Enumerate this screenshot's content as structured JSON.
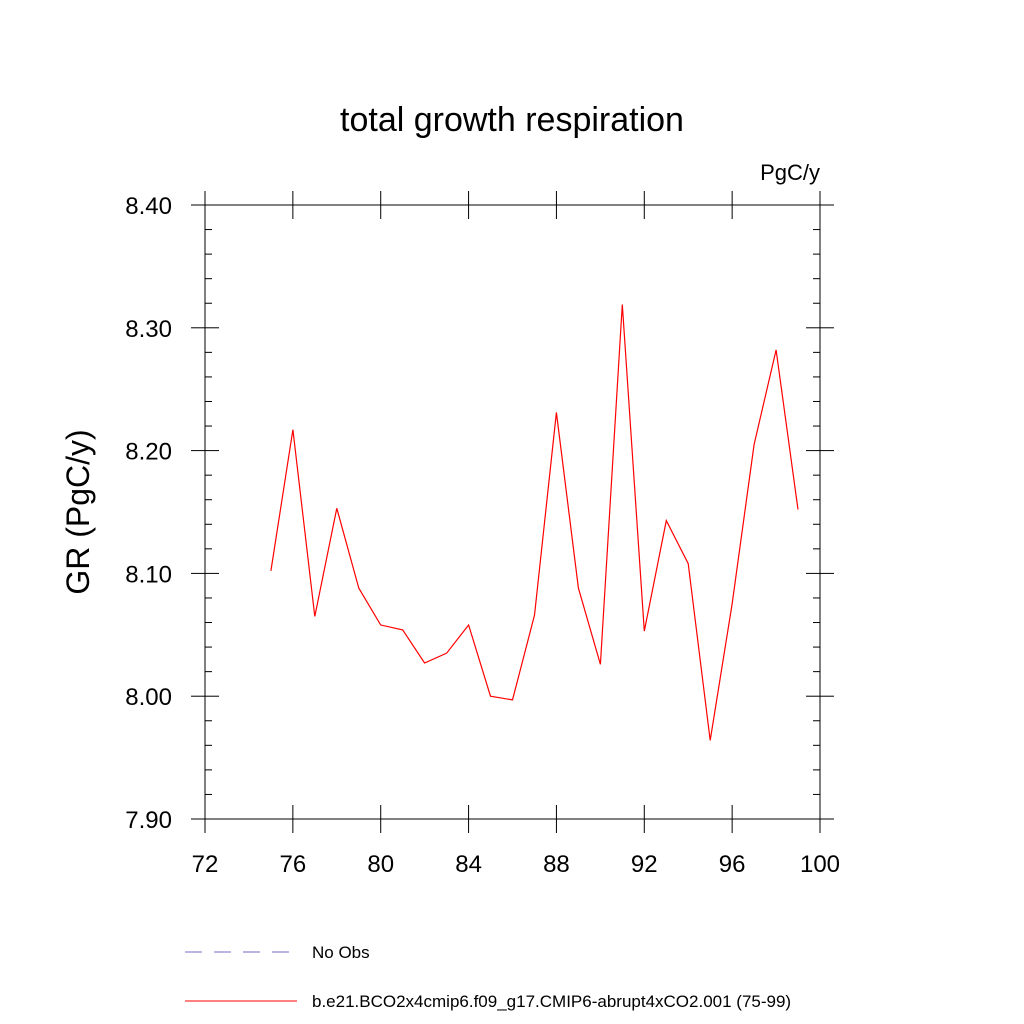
{
  "chart_data": {
    "type": "line",
    "title": "total growth respiration",
    "units": "PgC/y",
    "xlabel": "",
    "ylabel": "GR  (PgC/y)",
    "xlim": [
      72,
      100
    ],
    "ylim": [
      7.9,
      8.4
    ],
    "xticks": [
      72,
      76,
      80,
      84,
      88,
      92,
      96,
      100
    ],
    "xtick_labels": [
      "72",
      "76",
      "80",
      "84",
      "88",
      "92",
      "96",
      "100"
    ],
    "yticks": [
      7.9,
      8.0,
      8.1,
      8.2,
      8.3,
      8.4
    ],
    "ytick_labels": [
      "7.90",
      "8.00",
      "8.10",
      "8.20",
      "8.30",
      "8.40"
    ],
    "grid": false,
    "series": [
      {
        "name": "b.e21.BCO2x4cmip6.f09_g17.CMIP6-abrupt4xCO2.001 (75-99)",
        "color": "#ff0000",
        "style": "solid",
        "x": [
          75,
          76,
          77,
          78,
          79,
          80,
          81,
          82,
          83,
          84,
          85,
          86,
          87,
          88,
          89,
          90,
          91,
          92,
          93,
          94,
          95,
          96,
          97,
          98,
          99
        ],
        "values": [
          8.102,
          8.217,
          8.065,
          8.153,
          8.088,
          8.058,
          8.054,
          8.027,
          8.035,
          8.058,
          8.0,
          7.997,
          8.066,
          8.231,
          8.088,
          8.026,
          8.319,
          8.053,
          8.143,
          8.108,
          7.964,
          8.075,
          8.205,
          8.282,
          8.152
        ]
      }
    ],
    "legend": {
      "placement": "bottom-left",
      "entries": [
        {
          "label": "No Obs",
          "color": "#7b68c8",
          "style": "dashed"
        },
        {
          "label": "b.e21.BCO2x4cmip6.f09_g17.CMIP6-abrupt4xCO2.001 (75-99)",
          "color": "#ff0000",
          "style": "solid"
        }
      ]
    }
  }
}
